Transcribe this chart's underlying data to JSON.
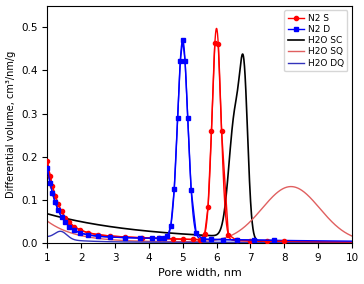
{
  "xlabel": "Pore width, nm",
  "ylabel": "Differential volume, cm³/nm/g",
  "xlim": [
    1,
    10
  ],
  "ylim": [
    0,
    0.55
  ],
  "yticks": [
    0,
    0.1,
    0.2,
    0.3,
    0.4,
    0.5
  ],
  "xticks": [
    1,
    2,
    3,
    4,
    5,
    6,
    7,
    8,
    9,
    10
  ],
  "series": {
    "N2_S": {
      "label": "N2 S",
      "color": "red",
      "marker": "o",
      "markersize": 3.0,
      "linewidth": 1.0
    },
    "N2_D": {
      "label": "N2 D",
      "color": "blue",
      "marker": "s",
      "markersize": 3.0,
      "linewidth": 1.0
    },
    "H2O_SC": {
      "label": "H2O SC",
      "color": "black",
      "linewidth": 1.2
    },
    "H2O_SQ": {
      "label": "H2O SQ",
      "color": "#e06060",
      "linewidth": 1.0
    },
    "H2O_DQ": {
      "label": "H2O DQ",
      "color": "#3333bb",
      "linewidth": 1.0
    }
  }
}
